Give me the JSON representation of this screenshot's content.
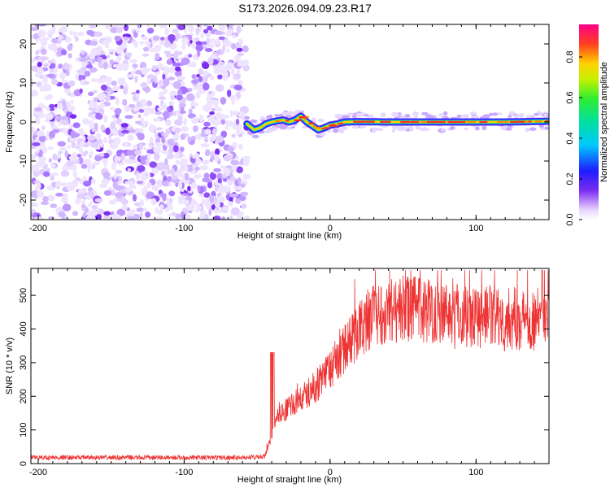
{
  "title": "S173.2026.094.09.23.R17",
  "chart_data": [
    {
      "type": "heatmap",
      "name": "spectrogram",
      "xlabel": "Height of straight line (km)",
      "ylabel": "Frequency (Hz)",
      "xlim": [
        -205,
        150
      ],
      "ylim": [
        -25,
        25
      ],
      "xticks": [
        -200,
        -100,
        0,
        100
      ],
      "yticks": [
        -20,
        -10,
        0,
        10,
        20
      ],
      "colorbar": {
        "label": "Normalized spectral amplitude",
        "range": [
          0.0,
          0.96
        ],
        "ticks": [
          0.0,
          0.2,
          0.4,
          0.6,
          0.8
        ]
      },
      "noise_region_x": [
        -205,
        -57
      ],
      "signal_track": {
        "description": "Narrow high-amplitude frequency line near 0 Hz",
        "x": [
          -57,
          -52,
          -48,
          -44,
          -40,
          -36,
          -32,
          -28,
          -24,
          -20,
          -16,
          -12,
          -8,
          -4,
          0,
          5,
          10,
          20,
          40,
          60,
          80,
          100,
          120,
          150
        ],
        "freq": [
          -0.5,
          -2.0,
          -1.5,
          -0.5,
          0.0,
          0.3,
          0.5,
          0.0,
          0.5,
          1.5,
          0.0,
          -1.0,
          -2.0,
          -1.5,
          -0.8,
          -0.5,
          0.0,
          0.1,
          0.0,
          0.0,
          0.0,
          0.0,
          0.0,
          0.2
        ]
      }
    },
    {
      "type": "line",
      "name": "snr",
      "xlabel": "Height of straight line (km)",
      "ylabel": "SNR (10 * v/v)",
      "xlim": [
        -205,
        150
      ],
      "ylim": [
        0,
        580
      ],
      "xticks": [
        -200,
        -100,
        0,
        100
      ],
      "yticks": [
        0,
        100,
        200,
        300,
        400,
        500
      ],
      "color": "#ee3333",
      "envelope": {
        "x": [
          -205,
          -60,
          -45,
          -40,
          -35,
          -20,
          -10,
          0,
          10,
          20,
          30,
          40,
          60,
          80,
          100,
          120,
          150
        ],
        "mean": [
          18,
          18,
          20,
          80,
          150,
          190,
          230,
          280,
          340,
          400,
          440,
          460,
          460,
          450,
          440,
          430,
          430
        ]
      }
    }
  ]
}
